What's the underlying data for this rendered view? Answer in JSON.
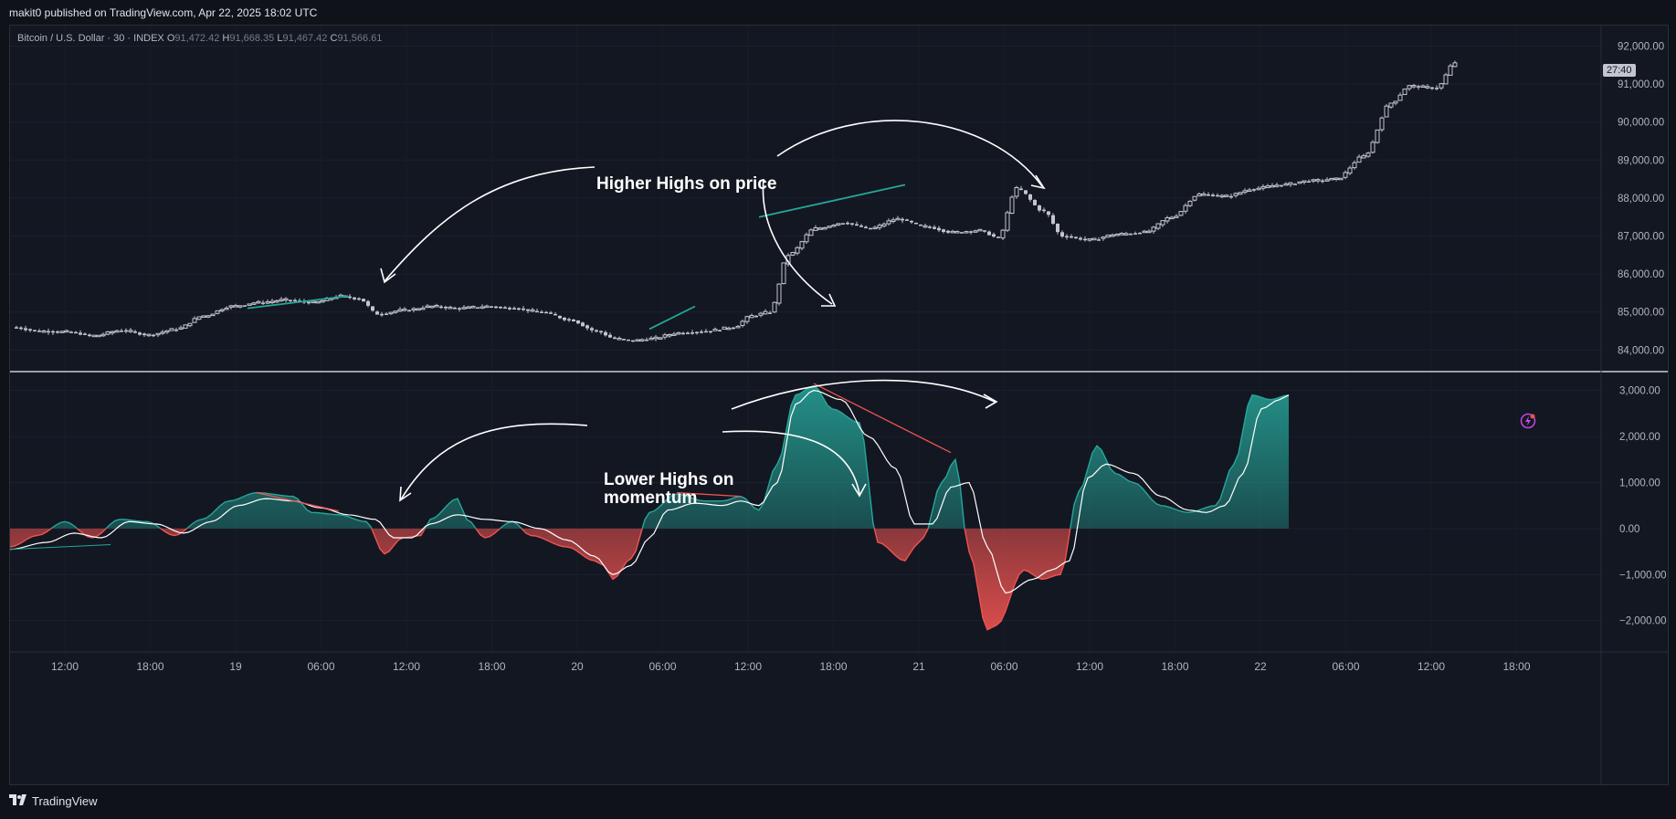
{
  "header": {
    "published": "makit0 published on TradingView.com, Apr 22, 2025 18:02 UTC"
  },
  "legend": {
    "symbol": "Bitcoin / U.S. Dollar · 30 · INDEX",
    "open_key": "O",
    "open": "91,472.42",
    "high_key": "H",
    "high": "91,668.35",
    "low_key": "L",
    "low": "91,467.42",
    "close_key": "C",
    "close": "91,566.61"
  },
  "countdown": "27:40",
  "annotations": {
    "price": "Higher Highs on price",
    "momentum_line1": "Lower Highs on",
    "momentum_line2": "momentum"
  },
  "footer": {
    "brand": "TradingView"
  },
  "colors": {
    "bg": "#131722",
    "up": "#26a69a",
    "down": "#ef5350",
    "candle": "#c3c6ce",
    "signal": "#ffffff"
  },
  "icons": {
    "alert": "lightning-alert-icon",
    "logo": "tradingview-logo-icon"
  },
  "chart_data": [
    {
      "type": "candlestick",
      "title": "Bitcoin / U.S. Dollar · 30 · INDEX",
      "ylim": [
        83600,
        92300
      ],
      "y_ticks": [
        "92,000.00",
        "91,000.00",
        "90,000.00",
        "89,000.00",
        "88,000.00",
        "87,000.00",
        "86,000.00",
        "85,000.00",
        "84,000.00"
      ],
      "x_ticks": [
        "12:00",
        "18:00",
        "19",
        "06:00",
        "12:00",
        "18:00",
        "20",
        "06:00",
        "12:00",
        "18:00",
        "21",
        "06:00",
        "12:00",
        "18:00",
        "22",
        "06:00",
        "12:00",
        "18:00"
      ],
      "close_anchors": [
        [
          0,
          84600
        ],
        [
          6,
          84500
        ],
        [
          12,
          84480
        ],
        [
          18,
          84380
        ],
        [
          24,
          84520
        ],
        [
          30,
          84400
        ],
        [
          36,
          84550
        ],
        [
          42,
          84900
        ],
        [
          48,
          85150
        ],
        [
          54,
          85250
        ],
        [
          60,
          85320
        ],
        [
          66,
          85250
        ],
        [
          72,
          85420
        ],
        [
          76,
          85350
        ],
        [
          80,
          84950
        ],
        [
          86,
          85050
        ],
        [
          92,
          85150
        ],
        [
          98,
          85100
        ],
        [
          104,
          85150
        ],
        [
          110,
          85100
        ],
        [
          116,
          85000
        ],
        [
          122,
          84800
        ],
        [
          128,
          84500
        ],
        [
          132,
          84300
        ],
        [
          136,
          84250
        ],
        [
          140,
          84300
        ],
        [
          146,
          84450
        ],
        [
          152,
          84500
        ],
        [
          158,
          84600
        ],
        [
          162,
          84900
        ],
        [
          166,
          85000
        ],
        [
          170,
          86500
        ],
        [
          176,
          87200
        ],
        [
          182,
          87350
        ],
        [
          188,
          87200
        ],
        [
          194,
          87450
        ],
        [
          200,
          87250
        ],
        [
          206,
          87100
        ],
        [
          212,
          87150
        ],
        [
          216,
          86950
        ],
        [
          220,
          88250
        ],
        [
          226,
          87650
        ],
        [
          230,
          87000
        ],
        [
          236,
          86900
        ],
        [
          242,
          87050
        ],
        [
          248,
          87100
        ],
        [
          254,
          87500
        ],
        [
          260,
          88100
        ],
        [
          266,
          88050
        ],
        [
          272,
          88250
        ],
        [
          278,
          88350
        ],
        [
          284,
          88450
        ],
        [
          290,
          88500
        ],
        [
          296,
          89100
        ],
        [
          302,
          90500
        ],
        [
          306,
          90950
        ],
        [
          312,
          90900
        ],
        [
          316,
          91566
        ]
      ],
      "trendlines": [
        {
          "label": "higher-high-1",
          "x0": 52,
          "y0": 85100,
          "x1": 74,
          "y1": 85420,
          "color": "#26a69a"
        },
        {
          "label": "higher-high-2",
          "x0": 140,
          "y0": 84550,
          "x1": 150,
          "y1": 85150,
          "color": "#26a69a"
        },
        {
          "label": "higher-high-3",
          "x0": 164,
          "y0": 87500,
          "x1": 196,
          "y1": 88350,
          "color": "#26a69a"
        }
      ]
    },
    {
      "type": "area",
      "title": "",
      "ylim": [
        -2600,
        3350
      ],
      "y_ticks": [
        "3,000.00",
        "2,000.00",
        "1,000.00",
        "0.00",
        "−1,000.00",
        "−2,000.00"
      ],
      "momentum_anchors": [
        [
          0,
          -400
        ],
        [
          6,
          -150
        ],
        [
          12,
          150
        ],
        [
          18,
          -200
        ],
        [
          24,
          200
        ],
        [
          30,
          150
        ],
        [
          36,
          -150
        ],
        [
          42,
          200
        ],
        [
          48,
          600
        ],
        [
          54,
          780
        ],
        [
          62,
          700
        ],
        [
          66,
          350
        ],
        [
          72,
          300
        ],
        [
          78,
          150
        ],
        [
          82,
          -550
        ],
        [
          86,
          -200
        ],
        [
          90,
          -150
        ],
        [
          92,
          200
        ],
        [
          98,
          650
        ],
        [
          100,
          200
        ],
        [
          104,
          -200
        ],
        [
          110,
          150
        ],
        [
          114,
          -150
        ],
        [
          122,
          -400
        ],
        [
          128,
          -700
        ],
        [
          130,
          -800
        ],
        [
          132,
          -1100
        ],
        [
          136,
          -650
        ],
        [
          140,
          350
        ],
        [
          146,
          750
        ],
        [
          152,
          600
        ],
        [
          156,
          600
        ],
        [
          160,
          700
        ],
        [
          164,
          400
        ],
        [
          168,
          1400
        ],
        [
          172,
          2900
        ],
        [
          176,
          3100
        ],
        [
          180,
          2600
        ],
        [
          186,
          2300
        ],
        [
          190,
          -300
        ],
        [
          196,
          -700
        ],
        [
          198,
          -400
        ],
        [
          200,
          -200
        ],
        [
          204,
          1000
        ],
        [
          207,
          1500
        ],
        [
          210,
          -500
        ],
        [
          214,
          -2200
        ],
        [
          216,
          -2100
        ],
        [
          222,
          -900
        ],
        [
          226,
          -1100
        ],
        [
          230,
          -1000
        ],
        [
          234,
          800
        ],
        [
          238,
          1800
        ],
        [
          242,
          1200
        ],
        [
          246,
          1000
        ],
        [
          252,
          500
        ],
        [
          258,
          350
        ],
        [
          264,
          500
        ],
        [
          268,
          1400
        ],
        [
          272,
          2900
        ],
        [
          276,
          2800
        ],
        [
          280,
          2900
        ]
      ],
      "signal_anchors": [
        [
          0,
          -450
        ],
        [
          8,
          -300
        ],
        [
          14,
          -100
        ],
        [
          20,
          -200
        ],
        [
          26,
          150
        ],
        [
          32,
          100
        ],
        [
          38,
          -100
        ],
        [
          44,
          150
        ],
        [
          50,
          500
        ],
        [
          56,
          650
        ],
        [
          62,
          600
        ],
        [
          68,
          450
        ],
        [
          74,
          300
        ],
        [
          80,
          200
        ],
        [
          84,
          -200
        ],
        [
          88,
          -200
        ],
        [
          92,
          100
        ],
        [
          98,
          300
        ],
        [
          104,
          200
        ],
        [
          110,
          150
        ],
        [
          116,
          0
        ],
        [
          122,
          -250
        ],
        [
          128,
          -600
        ],
        [
          132,
          -1000
        ],
        [
          136,
          -800
        ],
        [
          140,
          -200
        ],
        [
          144,
          400
        ],
        [
          150,
          550
        ],
        [
          156,
          500
        ],
        [
          160,
          600
        ],
        [
          164,
          500
        ],
        [
          168,
          1000
        ],
        [
          172,
          2700
        ],
        [
          176,
          3000
        ],
        [
          182,
          2800
        ],
        [
          188,
          2000
        ],
        [
          194,
          1300
        ],
        [
          198,
          100
        ],
        [
          202,
          100
        ],
        [
          206,
          900
        ],
        [
          210,
          1000
        ],
        [
          214,
          -400
        ],
        [
          218,
          -1400
        ],
        [
          224,
          -1100
        ],
        [
          228,
          -900
        ],
        [
          232,
          -700
        ],
        [
          236,
          1100
        ],
        [
          240,
          1400
        ],
        [
          246,
          1200
        ],
        [
          252,
          700
        ],
        [
          258,
          400
        ],
        [
          262,
          350
        ],
        [
          266,
          500
        ],
        [
          270,
          1200
        ],
        [
          274,
          2600
        ],
        [
          278,
          2800
        ],
        [
          280,
          2900
        ]
      ],
      "divergence_lines": [
        {
          "label": "lower-high-1",
          "x0": 54,
          "y0": 780,
          "x1": 72,
          "y1": 380,
          "color": "#ef5350"
        },
        {
          "label": "lower-high-2",
          "x0": 146,
          "y0": 780,
          "x1": 160,
          "y1": 700,
          "color": "#ef5350"
        },
        {
          "label": "lower-high-3",
          "x0": 176,
          "y0": 3150,
          "x1": 206,
          "y1": 1650,
          "color": "#ef5350"
        }
      ]
    }
  ]
}
